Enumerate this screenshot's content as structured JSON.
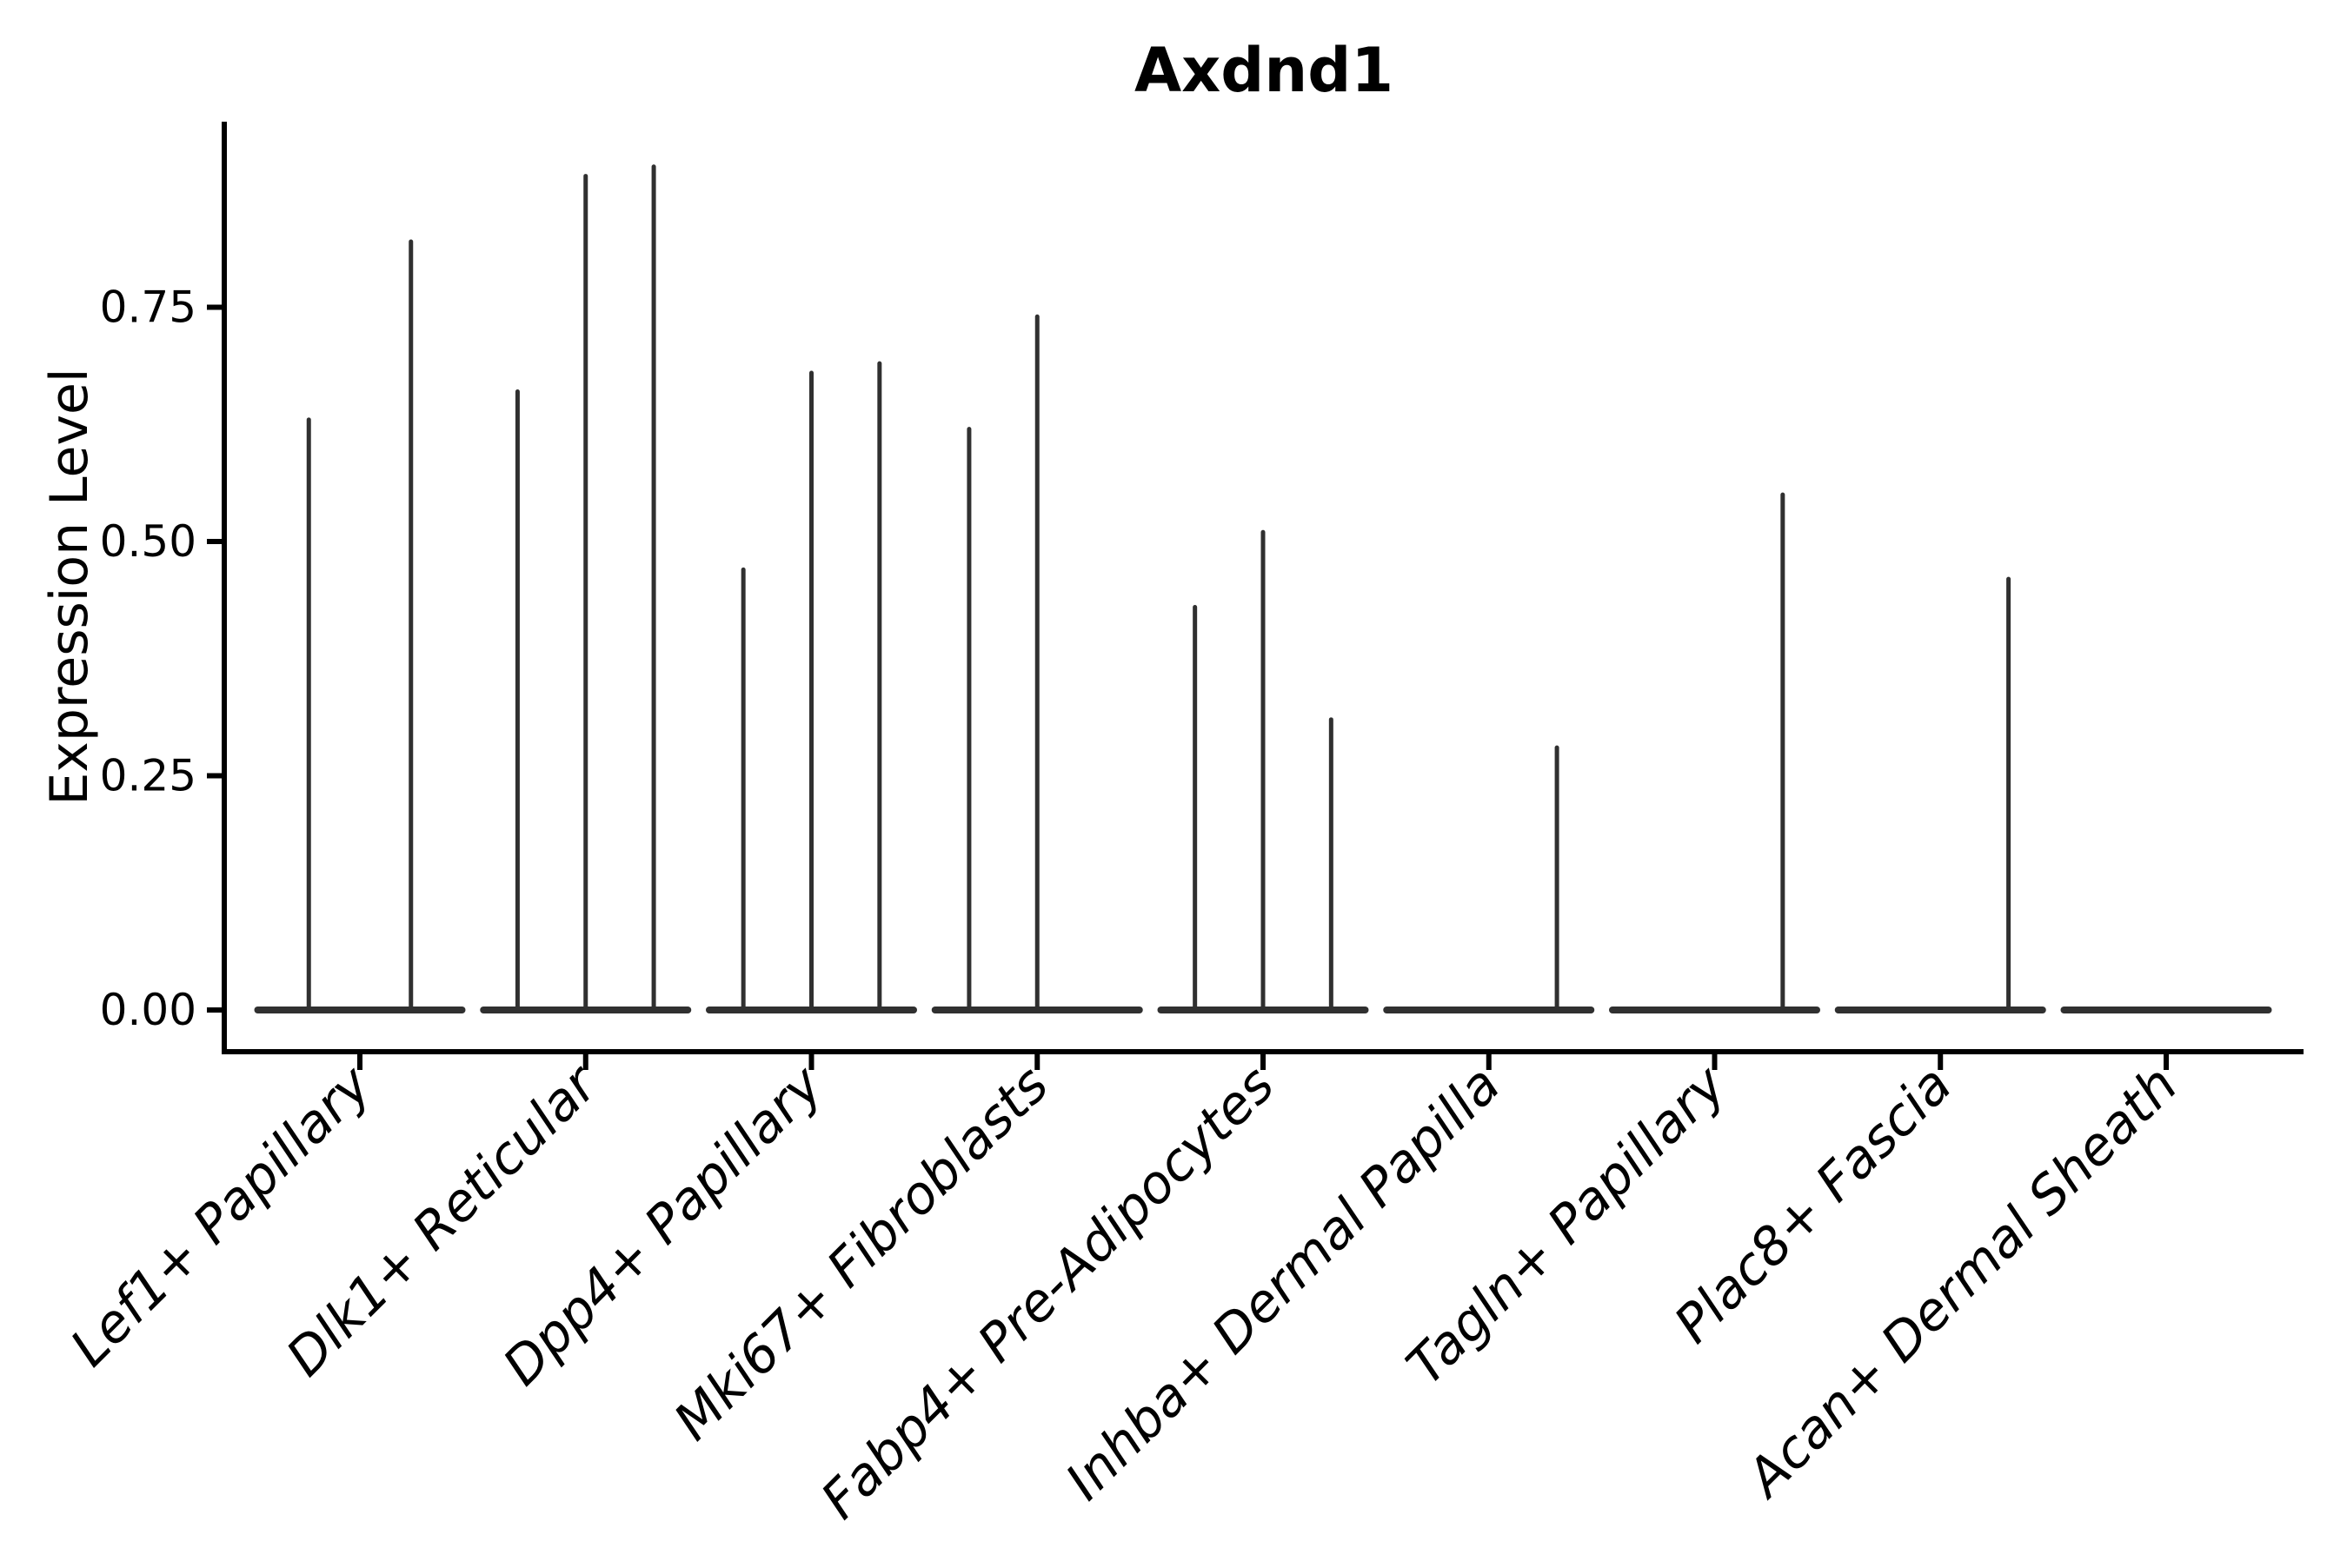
{
  "chart_data": {
    "type": "violin",
    "title": "Axdnd1",
    "xlabel": "",
    "ylabel": "Expression Level",
    "ytick_values": [
      0.0,
      0.25,
      0.5,
      0.75
    ],
    "ytick_labels": [
      "0.00",
      "0.25",
      "0.50",
      "0.75"
    ],
    "ylim": [
      -0.045,
      0.948
    ],
    "grid": "off",
    "legend": "none",
    "categories": [
      "Lef1+ Papillary",
      "Dlk1+ Reticular",
      "Dpp4+ Papillary",
      "Mki67+ Fibroblasts",
      "Fabp4+ Pre-Adipocytes",
      "Inhba+ Dermal Papilla",
      "Tagln+ Papillary",
      "Plac8+ Fascia",
      "Acan+ Dermal Sheath"
    ],
    "groups": [
      {
        "category": "Lef1+ Papillary",
        "violin_max": [
          0.63,
          0.82
        ]
      },
      {
        "category": "Dlk1+ Reticular",
        "violin_max": [
          0.66,
          0.89,
          0.9
        ]
      },
      {
        "category": "Dpp4+ Papillary",
        "violin_max": [
          0.47,
          0.68,
          0.69
        ]
      },
      {
        "category": "Mki67+ Fibroblasts",
        "violin_max": [
          0.62,
          0.74,
          0
        ]
      },
      {
        "category": "Fabp4+ Pre-Adipocytes",
        "violin_max": [
          0.43,
          0.51,
          0.31
        ]
      },
      {
        "category": "Inhba+ Dermal Papilla",
        "violin_max": [
          0,
          0,
          0.28
        ]
      },
      {
        "category": "Tagln+ Papillary",
        "violin_max": [
          0,
          0,
          0.55
        ]
      },
      {
        "category": "Plac8+ Fascia",
        "violin_max": [
          0,
          0,
          0.46
        ]
      },
      {
        "category": "Acan+ Dermal Sheath",
        "violin_max": [
          0,
          0,
          0
        ]
      }
    ],
    "colors": {
      "violin": "#303030",
      "axis": "#000000",
      "text": "#000000",
      "background": "#ffffff"
    }
  }
}
